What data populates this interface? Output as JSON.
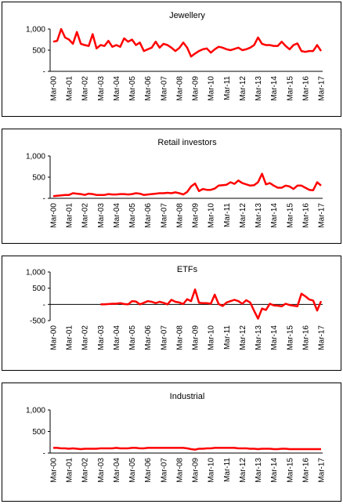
{
  "chart_data": [
    {
      "type": "line",
      "title": "Jewellery",
      "categories": [
        "Mar-00",
        null,
        null,
        null,
        "Mar-01",
        null,
        null,
        null,
        "Mar-02",
        null,
        null,
        null,
        "Mar-03",
        null,
        null,
        null,
        "Mar-04",
        null,
        null,
        null,
        "Mar-05",
        null,
        null,
        null,
        "Mar-06",
        null,
        null,
        null,
        "Mar-07",
        null,
        null,
        null,
        "Mar-08",
        null,
        null,
        null,
        "Mar-09",
        null,
        null,
        null,
        "Mar-10",
        null,
        null,
        null,
        "Mar-11",
        null,
        null,
        null,
        "Mar-12",
        null,
        null,
        null,
        "Mar-13",
        null,
        null,
        null,
        "Mar-14",
        null,
        null,
        null,
        "Mar-15",
        null,
        null,
        null,
        "Mar-16",
        null,
        null,
        null,
        "Mar-17"
      ],
      "series": [
        {
          "color": "#ff0000",
          "values": [
            700,
            720,
            1000,
            800,
            750,
            650,
            930,
            650,
            620,
            600,
            880,
            540,
            620,
            600,
            720,
            580,
            620,
            580,
            780,
            700,
            750,
            620,
            680,
            480,
            520,
            560,
            700,
            560,
            650,
            620,
            560,
            480,
            550,
            680,
            560,
            350,
            420,
            480,
            520,
            540,
            440,
            520,
            580,
            560,
            520,
            500,
            530,
            560,
            500,
            520,
            560,
            620,
            800,
            650,
            620,
            620,
            600,
            600,
            700,
            600,
            520,
            620,
            660,
            480,
            460,
            480,
            480,
            620,
            480
          ]
        }
      ],
      "ylim": [
        0,
        1000
      ],
      "yticks": [
        {
          "value": 0,
          "label": "-"
        },
        500,
        {
          "value": 1000,
          "label": "1,000"
        }
      ]
    },
    {
      "type": "line",
      "title": "Retail investors",
      "categories": [
        "Mar-00",
        null,
        null,
        null,
        "Mar-01",
        null,
        null,
        null,
        "Mar-02",
        null,
        null,
        null,
        "Mar-03",
        null,
        null,
        null,
        "Mar-04",
        null,
        null,
        null,
        "Mar-05",
        null,
        null,
        null,
        "Mar-06",
        null,
        null,
        null,
        "Mar-07",
        null,
        null,
        null,
        "Mar-08",
        null,
        null,
        null,
        "Mar-09",
        null,
        null,
        null,
        "Mar-10",
        null,
        null,
        null,
        "Mar-11",
        null,
        null,
        null,
        "Mar-12",
        null,
        null,
        null,
        "Mar-13",
        null,
        null,
        null,
        "Mar-14",
        null,
        null,
        null,
        "Mar-15",
        null,
        null,
        null,
        "Mar-16",
        null,
        null,
        null,
        "Mar-17"
      ],
      "series": [
        {
          "color": "#ff0000",
          "values": [
            50,
            60,
            70,
            80,
            80,
            120,
            110,
            100,
            80,
            110,
            100,
            80,
            80,
            80,
            100,
            90,
            90,
            100,
            100,
            90,
            100,
            120,
            110,
            80,
            90,
            100,
            110,
            120,
            120,
            130,
            120,
            140,
            120,
            90,
            150,
            280,
            350,
            170,
            220,
            200,
            200,
            230,
            300,
            310,
            320,
            380,
            340,
            420,
            360,
            330,
            300,
            310,
            380,
            580,
            330,
            360,
            300,
            250,
            250,
            300,
            280,
            220,
            300,
            300,
            250,
            200,
            190,
            380,
            300
          ]
        }
      ],
      "ylim": [
        0,
        1000
      ],
      "yticks": [
        {
          "value": 0,
          "label": "-"
        },
        500,
        {
          "value": 1000,
          "label": "1,000"
        }
      ]
    },
    {
      "type": "line",
      "title": "ETFs",
      "categories": [
        "Mar-00",
        null,
        null,
        null,
        "Mar-01",
        null,
        null,
        null,
        "Mar-02",
        null,
        null,
        null,
        "Mar-03",
        null,
        null,
        null,
        "Mar-04",
        null,
        null,
        null,
        "Mar-05",
        null,
        null,
        null,
        "Mar-06",
        null,
        null,
        null,
        "Mar-07",
        null,
        null,
        null,
        "Mar-08",
        null,
        null,
        null,
        "Mar-09",
        null,
        null,
        null,
        "Mar-10",
        null,
        null,
        null,
        "Mar-11",
        null,
        null,
        null,
        "Mar-12",
        null,
        null,
        null,
        "Mar-13",
        null,
        null,
        null,
        "Mar-14",
        null,
        null,
        null,
        "Mar-15",
        null,
        null,
        null,
        "Mar-16",
        null,
        null,
        null,
        "Mar-17"
      ],
      "series": [
        {
          "color": "#ff0000",
          "values": [
            null,
            null,
            null,
            null,
            null,
            null,
            null,
            null,
            null,
            null,
            null,
            null,
            0,
            0,
            10,
            20,
            20,
            40,
            10,
            0,
            100,
            90,
            0,
            50,
            100,
            80,
            40,
            80,
            50,
            0,
            140,
            80,
            60,
            10,
            160,
            100,
            460,
            50,
            40,
            40,
            20,
            300,
            10,
            -50,
            60,
            100,
            140,
            100,
            20,
            130,
            60,
            -200,
            -440,
            -130,
            -170,
            20,
            -30,
            -40,
            -60,
            20,
            -20,
            -40,
            -60,
            330,
            250,
            150,
            120,
            -190,
            100
          ]
        }
      ],
      "ylim": [
        -500,
        1000
      ],
      "yticks": [
        -500,
        {
          "value": 0,
          "label": "-"
        },
        500,
        {
          "value": 1000,
          "label": "1,000"
        }
      ]
    },
    {
      "type": "line",
      "title": "Industrial",
      "categories": [
        "Mar-00",
        null,
        null,
        null,
        "Mar-01",
        null,
        null,
        null,
        "Mar-02",
        null,
        null,
        null,
        "Mar-03",
        null,
        null,
        null,
        "Mar-04",
        null,
        null,
        null,
        "Mar-05",
        null,
        null,
        null,
        "Mar-06",
        null,
        null,
        null,
        "Mar-07",
        null,
        null,
        null,
        "Mar-08",
        null,
        null,
        null,
        "Mar-09",
        null,
        null,
        null,
        "Mar-10",
        null,
        null,
        null,
        "Mar-11",
        null,
        null,
        null,
        "Mar-12",
        null,
        null,
        null,
        "Mar-13",
        null,
        null,
        null,
        "Mar-14",
        null,
        null,
        null,
        "Mar-15",
        null,
        null,
        null,
        "Mar-16",
        null,
        null,
        null,
        "Mar-17"
      ],
      "series": [
        {
          "color": "#ff0000",
          "values": [
            120,
            120,
            110,
            110,
            100,
            110,
            100,
            90,
            100,
            100,
            100,
            100,
            110,
            110,
            110,
            110,
            120,
            110,
            110,
            110,
            120,
            120,
            110,
            110,
            120,
            120,
            120,
            120,
            120,
            120,
            120,
            120,
            120,
            120,
            110,
            90,
            80,
            100,
            100,
            110,
            110,
            120,
            120,
            120,
            120,
            120,
            120,
            110,
            110,
            110,
            100,
            100,
            90,
            100,
            100,
            100,
            90,
            90,
            100,
            100,
            90,
            90,
            90,
            90,
            90,
            90,
            90,
            90,
            90
          ]
        }
      ],
      "ylim": [
        0,
        1000
      ],
      "yticks": [
        {
          "value": 0,
          "label": "-"
        },
        500,
        {
          "value": 1000,
          "label": "1,000"
        }
      ]
    }
  ]
}
